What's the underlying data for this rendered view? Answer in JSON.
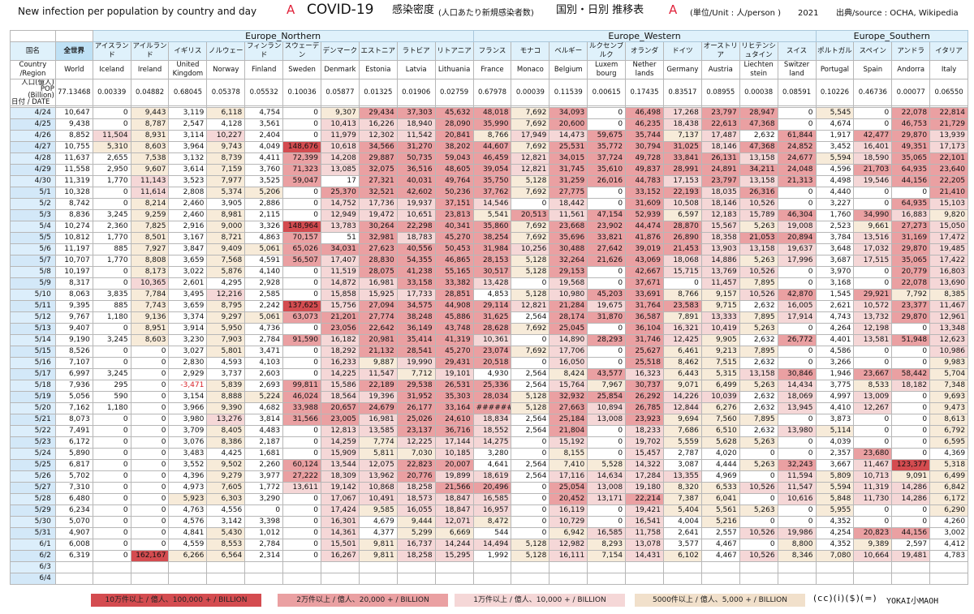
{
  "header": {
    "title_en": "New infection per population by country and day",
    "title_en_marker": "A",
    "title_main": "COVID-19",
    "title_jp": "感染密度",
    "title_jp_note": "(人口あたり新規感染者数)",
    "title_jp2": "国別・日別 推移表",
    "title_jp2_marker": "A",
    "unit": "(単位/Unit : 人/person )",
    "year": "2021",
    "source": "出典/source : OCHA, Wikipedia"
  },
  "regions": {
    "northern": "Europe_Northern",
    "western": "Europe_Western",
    "southern": "Europe_Southern"
  },
  "corner": {
    "jp": "国名",
    "en": "Country\n/Region",
    "pop_label": "人口(億人)\nPOP\n(Billion)",
    "date_label": "日付 / DATE"
  },
  "world": {
    "jp": "全世界",
    "en": "World",
    "pop": "77.13468"
  },
  "countries": [
    {
      "jp": "アイスランド",
      "en": "Iceland",
      "pop": "0.00339"
    },
    {
      "jp": "アイルランド",
      "en": "Ireland",
      "pop": "0.04882"
    },
    {
      "jp": "イギリス",
      "en": "United Kingdom",
      "pop": "0.68045"
    },
    {
      "jp": "ノルウェー",
      "en": "Norway",
      "pop": "0.05378"
    },
    {
      "jp": "フィンランド",
      "en": "Finland",
      "pop": "0.05532"
    },
    {
      "jp": "スウェーデン",
      "en": "Sweden",
      "pop": "0.10036"
    },
    {
      "jp": "デンマーク",
      "en": "Denmark",
      "pop": "0.05877"
    },
    {
      "jp": "エストニア",
      "en": "Estonia",
      "pop": "0.01325"
    },
    {
      "jp": "ラトビア",
      "en": "Latvia",
      "pop": "0.01906"
    },
    {
      "jp": "リトアニア",
      "en": "Lithuania",
      "pop": "0.02759"
    },
    {
      "jp": "フランス",
      "en": "France",
      "pop": "0.67978"
    },
    {
      "jp": "モナコ",
      "en": "Monaco",
      "pop": "0.00039"
    },
    {
      "jp": "ベルギー",
      "en": "Belgium",
      "pop": "0.11539"
    },
    {
      "jp": "ルクセンブルク",
      "en": "Luxem bourg",
      "pop": "0.00615"
    },
    {
      "jp": "オランダ",
      "en": "Nether lands",
      "pop": "0.17435"
    },
    {
      "jp": "ドイツ",
      "en": "Germany",
      "pop": "0.83517"
    },
    {
      "jp": "オーストリア",
      "en": "Austria",
      "pop": "0.08955"
    },
    {
      "jp": "リヒテンシュタイン",
      "en": "Liechten stein",
      "pop": "0.00038"
    },
    {
      "jp": "スイス",
      "en": "Switzer land",
      "pop": "0.08591"
    },
    {
      "jp": "ポルトガル",
      "en": "Portugal",
      "pop": "0.10226"
    },
    {
      "jp": "スペイン",
      "en": "Spain",
      "pop": "0.46736"
    },
    {
      "jp": "アンドラ",
      "en": "Andorra",
      "pop": "0.00077"
    },
    {
      "jp": "イタリア",
      "en": "Italy",
      "pop": "0.06550"
    }
  ],
  "dates": [
    "4/24",
    "4/25",
    "4/26",
    "4/27",
    "4/28",
    "4/29",
    "4/30",
    "5/1",
    "5/2",
    "5/3",
    "5/4",
    "5/5",
    "5/6",
    "5/7",
    "5/8",
    "5/9",
    "5/10",
    "5/11",
    "5/12",
    "5/13",
    "5/14",
    "5/15",
    "5/16",
    "5/17",
    "5/18",
    "5/19",
    "5/20",
    "5/21",
    "5/22",
    "5/23",
    "5/24",
    "5/25",
    "5/26",
    "5/27",
    "5/28",
    "5/29",
    "5/30",
    "5/31",
    "6/1",
    "6/2",
    "6/3",
    "6/4"
  ],
  "rows": [
    [
      "10,647",
      "0",
      "9,443",
      "3,119",
      "6,118",
      "4,754",
      "0",
      "9,307",
      "29,434",
      "37,303",
      "45,632",
      "48,018",
      "7,692",
      "34,093",
      "0",
      "46,498",
      "17,268",
      "23,797",
      "28,947",
      "0",
      "5,545",
      "0",
      "22,078",
      "22,814"
    ],
    [
      "9,438",
      "0",
      "8,787",
      "2,547",
      "4,128",
      "3,561",
      "0",
      "10,413",
      "16,226",
      "18,940",
      "28,090",
      "35,990",
      "7,692",
      "20,600",
      "0",
      "46,235",
      "18,438",
      "22,613",
      "47,368",
      "0",
      "4,674",
      "0",
      "46,753",
      "21,729"
    ],
    [
      "8,852",
      "11,504",
      "8,931",
      "3,114",
      "10,227",
      "2,404",
      "0",
      "11,979",
      "12,302",
      "11,542",
      "20,841",
      "8,766",
      "17,949",
      "14,473",
      "59,675",
      "35,744",
      "7,137",
      "17,487",
      "2,632",
      "61,844",
      "1,917",
      "42,477",
      "29,870",
      "13,939"
    ],
    [
      "10,755",
      "5,310",
      "8,603",
      "3,964",
      "9,743",
      "4,049",
      "148,676",
      "10,618",
      "34,566",
      "31,270",
      "38,202",
      "44,607",
      "7,692",
      "25,531",
      "35,772",
      "30,794",
      "31,025",
      "18,146",
      "47,368",
      "24,852",
      "3,452",
      "16,401",
      "49,351",
      "17,173"
    ],
    [
      "11,637",
      "2,655",
      "7,538",
      "3,132",
      "8,739",
      "4,411",
      "72,399",
      "14,208",
      "29,887",
      "50,735",
      "59,043",
      "46,459",
      "12,821",
      "34,015",
      "37,724",
      "49,728",
      "33,841",
      "26,131",
      "13,158",
      "24,677",
      "5,594",
      "18,590",
      "35,065",
      "22,101"
    ],
    [
      "11,558",
      "2,950",
      "9,607",
      "3,614",
      "7,159",
      "3,760",
      "71,323",
      "13,085",
      "32,075",
      "36,516",
      "48,605",
      "39,054",
      "12,821",
      "31,745",
      "35,610",
      "49,837",
      "28,991",
      "24,891",
      "34,211",
      "24,048",
      "4,596",
      "21,703",
      "64,935",
      "23,640"
    ],
    [
      "11,319",
      "1,770",
      "11,143",
      "3,523",
      "7,977",
      "3,525",
      "59,047",
      "17",
      "27,321",
      "40,031",
      "49,764",
      "35,750",
      "5,128",
      "31,259",
      "26,016",
      "44,783",
      "17,153",
      "23,797",
      "13,158",
      "21,313",
      "4,498",
      "19,546",
      "44,156",
      "22,205"
    ],
    [
      "10,328",
      "0",
      "11,614",
      "2,808",
      "5,374",
      "5,206",
      "0",
      "25,370",
      "32,521",
      "42,602",
      "50,236",
      "37,762",
      "7,692",
      "27,775",
      "0",
      "33,152",
      "22,193",
      "18,035",
      "26,316",
      "0",
      "4,440",
      "0",
      "0",
      "21,410"
    ],
    [
      "8,742",
      "0",
      "8,214",
      "2,460",
      "3,905",
      "2,886",
      "0",
      "14,752",
      "17,736",
      "19,937",
      "37,151",
      "14,546",
      "0",
      "18,442",
      "0",
      "31,609",
      "10,508",
      "18,146",
      "10,526",
      "0",
      "3,227",
      "0",
      "64,935",
      "15,103"
    ],
    [
      "8,836",
      "3,245",
      "9,259",
      "2,460",
      "8,981",
      "2,115",
      "0",
      "12,949",
      "19,472",
      "10,651",
      "23,813",
      "5,541",
      "20,513",
      "11,561",
      "47,154",
      "52,939",
      "6,597",
      "12,183",
      "15,789",
      "46,304",
      "1,760",
      "34,990",
      "16,883",
      "9,820"
    ],
    [
      "10,274",
      "2,360",
      "7,825",
      "2,916",
      "9,000",
      "3,326",
      "148,964",
      "13,783",
      "30,264",
      "22,298",
      "40,341",
      "35,860",
      "7,692",
      "23,668",
      "23,902",
      "44,474",
      "28,870",
      "15,567",
      "5,263",
      "19,008",
      "2,523",
      "9,661",
      "27,273",
      "15,050"
    ],
    [
      "10,812",
      "1,770",
      "8,501",
      "3,167",
      "8,721",
      "4,863",
      "70,157",
      "51",
      "32,981",
      "18,783",
      "45,270",
      "38,254",
      "7,692",
      "35,696",
      "33,821",
      "41,876",
      "26,890",
      "18,358",
      "21,053",
      "20,894",
      "3,784",
      "13,516",
      "31,169",
      "17,472"
    ],
    [
      "11,197",
      "885",
      "7,927",
      "3,847",
      "9,409",
      "5,061",
      "65,026",
      "34,031",
      "27,623",
      "40,556",
      "50,453",
      "31,984",
      "10,256",
      "30,488",
      "27,642",
      "39,019",
      "21,453",
      "13,903",
      "13,158",
      "19,637",
      "3,648",
      "17,032",
      "29,870",
      "19,485"
    ],
    [
      "10,707",
      "1,770",
      "8,808",
      "3,659",
      "7,568",
      "4,591",
      "56,507",
      "17,407",
      "28,830",
      "54,355",
      "46,865",
      "28,153",
      "5,128",
      "32,264",
      "21,626",
      "43,069",
      "18,068",
      "14,886",
      "5,263",
      "17,996",
      "3,687",
      "17,515",
      "35,065",
      "17,422"
    ],
    [
      "10,197",
      "0",
      "8,173",
      "3,022",
      "5,876",
      "4,140",
      "0",
      "11,519",
      "28,075",
      "41,238",
      "55,165",
      "30,517",
      "5,128",
      "29,153",
      "0",
      "42,667",
      "15,715",
      "13,769",
      "10,526",
      "0",
      "3,970",
      "0",
      "20,779",
      "16,803"
    ],
    [
      "8,317",
      "0",
      "10,365",
      "2,601",
      "4,295",
      "2,928",
      "0",
      "14,872",
      "16,981",
      "33,158",
      "33,382",
      "13,428",
      "0",
      "19,568",
      "0",
      "37,671",
      "0",
      "11,457",
      "7,895",
      "0",
      "3,168",
      "0",
      "22,078",
      "13,690"
    ],
    [
      "8,063",
      "3,835",
      "7,784",
      "3,495",
      "12,216",
      "2,585",
      "0",
      "15,858",
      "15,925",
      "17,733",
      "28,851",
      "4,853",
      "5,128",
      "10,980",
      "45,203",
      "33,691",
      "8,766",
      "9,157",
      "10,526",
      "42,870",
      "1,545",
      "29,921",
      "7,792",
      "8,385"
    ],
    [
      "9,395",
      "885",
      "7,743",
      "3,659",
      "8,795",
      "2,242",
      "137,625",
      "15,756",
      "27,094",
      "34,575",
      "44,908",
      "29,114",
      "12,821",
      "21,284",
      "19,675",
      "31,764",
      "23,583",
      "9,715",
      "2,632",
      "16,005",
      "2,621",
      "10,572",
      "23,377",
      "11,467"
    ],
    [
      "9,767",
      "1,180",
      "9,136",
      "3,374",
      "9,297",
      "5,061",
      "63,073",
      "21,201",
      "27,774",
      "38,248",
      "45,886",
      "31,625",
      "2,564",
      "28,174",
      "31,870",
      "36,587",
      "7,891",
      "13,333",
      "7,895",
      "17,914",
      "4,743",
      "13,732",
      "29,870",
      "12,961"
    ],
    [
      "9,407",
      "0",
      "8,951",
      "3,914",
      "5,950",
      "4,736",
      "0",
      "23,056",
      "22,642",
      "36,149",
      "43,748",
      "28,628",
      "7,692",
      "25,045",
      "0",
      "36,104",
      "16,321",
      "10,419",
      "5,263",
      "0",
      "4,264",
      "12,198",
      "0",
      "13,348"
    ],
    [
      "9,190",
      "3,245",
      "8,603",
      "3,230",
      "7,903",
      "2,784",
      "91,590",
      "16,182",
      "20,981",
      "35,414",
      "41,319",
      "10,361",
      "0",
      "14,890",
      "28,293",
      "31,746",
      "12,425",
      "9,905",
      "2,632",
      "26,772",
      "4,401",
      "13,581",
      "51,948",
      "12,623"
    ],
    [
      "8,526",
      "0",
      "0",
      "3,027",
      "5,801",
      "3,471",
      "0",
      "18,292",
      "21,132",
      "28,541",
      "45,270",
      "23,074",
      "7,692",
      "17,706",
      "0",
      "25,627",
      "6,461",
      "9,213",
      "7,895",
      "0",
      "4,586",
      "0",
      "0",
      "10,986"
    ],
    [
      "7,107",
      "0",
      "0",
      "2,830",
      "4,593",
      "4,103",
      "0",
      "16,233",
      "9,887",
      "19,990",
      "29,431",
      "20,518",
      "0",
      "16,050",
      "0",
      "25,518",
      "8,462",
      "7,515",
      "2,632",
      "0",
      "3,266",
      "0",
      "0",
      "9,983"
    ],
    [
      "6,997",
      "3,245",
      "0",
      "2,929",
      "3,737",
      "2,603",
      "0",
      "14,225",
      "11,547",
      "7,712",
      "19,101",
      "4,930",
      "2,564",
      "8,424",
      "43,577",
      "16,323",
      "6,443",
      "5,315",
      "13,158",
      "30,846",
      "1,946",
      "23,667",
      "58,442",
      "5,704"
    ],
    [
      "7,936",
      "295",
      "0",
      "-3,471",
      "5,839",
      "2,693",
      "99,811",
      "15,586",
      "22,189",
      "29,538",
      "26,531",
      "25,336",
      "2,564",
      "15,764",
      "7,967",
      "30,737",
      "9,071",
      "6,499",
      "5,263",
      "14,434",
      "3,775",
      "8,533",
      "18,182",
      "7,348"
    ],
    [
      "5,056",
      "590",
      "0",
      "3,154",
      "8,888",
      "5,224",
      "46,024",
      "18,564",
      "19,396",
      "31,952",
      "35,303",
      "28,034",
      "5,128",
      "32,932",
      "25,854",
      "26,292",
      "14,226",
      "10,039",
      "2,632",
      "18,069",
      "4,997",
      "13,009",
      "0",
      "9,693"
    ],
    [
      "7,162",
      "1,180",
      "0",
      "3,966",
      "9,390",
      "4,682",
      "33,988",
      "20,657",
      "24,679",
      "26,177",
      "33,164",
      "######",
      "5,128",
      "27,663",
      "10,894",
      "26,785",
      "12,844",
      "6,276",
      "2,632",
      "13,945",
      "4,410",
      "12,267",
      "0",
      "9,473"
    ],
    [
      "8,073",
      "0",
      "0",
      "3,980",
      "13,276",
      "3,814",
      "31,566",
      "23,005",
      "16,981",
      "25,026",
      "24,610",
      "18,834",
      "2,564",
      "25,184",
      "13,008",
      "23,923",
      "9,694",
      "7,560",
      "7,895",
      "0",
      "3,873",
      "0",
      "0",
      "8,613"
    ],
    [
      "7,491",
      "0",
      "0",
      "3,709",
      "8,405",
      "4,483",
      "0",
      "12,813",
      "13,585",
      "23,137",
      "36,716",
      "18,552",
      "2,564",
      "21,804",
      "0",
      "18,233",
      "7,686",
      "6,510",
      "2,632",
      "13,980",
      "5,114",
      "0",
      "0",
      "6,792"
    ],
    [
      "6,172",
      "0",
      "0",
      "3,076",
      "8,386",
      "2,187",
      "0",
      "14,259",
      "7,774",
      "12,225",
      "17,144",
      "14,275",
      "0",
      "15,192",
      "0",
      "19,702",
      "5,559",
      "5,628",
      "5,263",
      "0",
      "4,039",
      "0",
      "0",
      "6,595"
    ],
    [
      "5,890",
      "0",
      "0",
      "3,483",
      "4,425",
      "1,681",
      "0",
      "15,909",
      "5,811",
      "7,030",
      "10,185",
      "3,280",
      "0",
      "8,155",
      "0",
      "15,457",
      "2,787",
      "4,020",
      "0",
      "0",
      "2,357",
      "23,680",
      "0",
      "4,369"
    ],
    [
      "6,817",
      "0",
      "0",
      "3,552",
      "9,502",
      "2,260",
      "60,124",
      "13,544",
      "12,075",
      "22,823",
      "20,007",
      "4,641",
      "2,564",
      "7,410",
      "5,528",
      "14,322",
      "3,087",
      "4,444",
      "5,263",
      "32,243",
      "3,667",
      "11,467",
      "123,377",
      "5,318"
    ],
    [
      "5,702",
      "0",
      "0",
      "4,396",
      "9,279",
      "3,977",
      "27,222",
      "18,309",
      "13,962",
      "20,776",
      "19,899",
      "18,619",
      "2,564",
      "17,116",
      "14,634",
      "17,284",
      "13,355",
      "4,969",
      "0",
      "11,594",
      "5,809",
      "10,713",
      "9,091",
      "6,499"
    ],
    [
      "7,310",
      "0",
      "0",
      "4,973",
      "7,605",
      "1,772",
      "13,611",
      "19,142",
      "10,868",
      "18,258",
      "21,566",
      "20,496",
      "0",
      "25,054",
      "13,008",
      "19,180",
      "8,320",
      "6,533",
      "10,526",
      "11,547",
      "5,594",
      "11,319",
      "14,286",
      "6,842"
    ],
    [
      "6,480",
      "0",
      "0",
      "5,923",
      "6,303",
      "3,290",
      "0",
      "17,067",
      "10,491",
      "18,573",
      "18,847",
      "16,585",
      "0",
      "20,452",
      "13,171",
      "22,214",
      "7,387",
      "6,041",
      "0",
      "10,616",
      "5,848",
      "11,730",
      "14,286",
      "6,172"
    ],
    [
      "6,234",
      "0",
      "0",
      "4,763",
      "4,556",
      "0",
      "0",
      "17,424",
      "9,585",
      "16,055",
      "18,847",
      "16,957",
      "0",
      "16,119",
      "0",
      "19,421",
      "5,404",
      "5,561",
      "5,263",
      "0",
      "5,955",
      "0",
      "0",
      "6,290"
    ],
    [
      "5,070",
      "0",
      "0",
      "4,576",
      "3,142",
      "3,398",
      "0",
      "16,301",
      "4,679",
      "9,444",
      "12,071",
      "8,472",
      "0",
      "10,729",
      "0",
      "16,541",
      "4,004",
      "5,216",
      "0",
      "0",
      "4,352",
      "0",
      "0",
      "4,260"
    ],
    [
      "4,907",
      "0",
      "0",
      "4,841",
      "5,430",
      "1,012",
      "0",
      "14,361",
      "4,377",
      "5,299",
      "6,669",
      "544",
      "0",
      "6,942",
      "16,585",
      "11,758",
      "2,641",
      "2,557",
      "10,526",
      "19,986",
      "4,254",
      "20,823",
      "44,156",
      "3,002"
    ],
    [
      "6,008",
      "0",
      "0",
      "4,559",
      "8,553",
      "2,784",
      "0",
      "15,501",
      "9,811",
      "16,737",
      "14,244",
      "14,494",
      "5,128",
      "12,982",
      "8,293",
      "13,078",
      "3,577",
      "4,467",
      "0",
      "8,800",
      "4,352",
      "9,389",
      "2,597",
      "4,412"
    ],
    [
      "6,319",
      "0",
      "162,167",
      "6,266",
      "6,564",
      "2,314",
      "0",
      "16,267",
      "9,811",
      "18,258",
      "15,295",
      "1,992",
      "5,128",
      "16,111",
      "7,154",
      "14,431",
      "6,102",
      "4,467",
      "10,526",
      "8,346",
      "7,080",
      "10,664",
      "19,481",
      "4,783"
    ],
    [],
    []
  ],
  "legend": {
    "l1": "10万件以上 / 億人、100,000 + / BILLION",
    "l2": "2万件以上 / 億人、20,000 + / BILLION",
    "l3": "1万件以上 / 億人、10,000 + / BILLION",
    "l4": "5000件以上 / 億人、5,000 + / BILLION",
    "license": "(cc)(i)($)(=)",
    "author": "YOKAI小MAOH"
  },
  "colors": {
    "c1": "#d44c50",
    "c2": "#eaa0a2",
    "c3": "#f5d7d7",
    "c4": "#f7ebd9",
    "header_bg": "#dff1fb",
    "title_accent": "#e0223a"
  }
}
